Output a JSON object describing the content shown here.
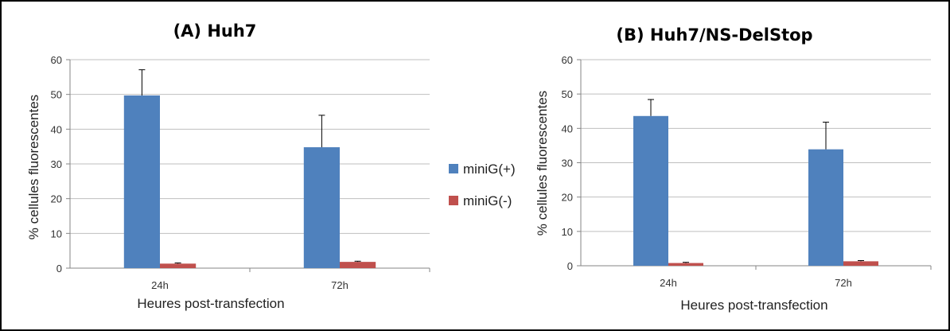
{
  "chart_data": [
    {
      "type": "bar",
      "title": "(A) Huh7",
      "xlabel": "Heures post-transfection",
      "ylabel": "% cellules fluorescentes",
      "categories": [
        "24h",
        "72h"
      ],
      "ylim": [
        0,
        60
      ],
      "yticks": [
        0,
        10,
        20,
        30,
        40,
        50,
        60
      ],
      "grid": true,
      "series": [
        {
          "name": "miniG(+)",
          "values": [
            49.7,
            34.8
          ],
          "errors": [
            7.4,
            9.2
          ]
        },
        {
          "name": "miniG(-)",
          "values": [
            1.3,
            1.8
          ],
          "errors": [
            0.2,
            0.2
          ]
        }
      ]
    },
    {
      "type": "bar",
      "title": "(B) Huh7/NS-DelStop",
      "xlabel": "Heures post-transfection",
      "ylabel": "% cellules fluorescentes",
      "categories": [
        "24h",
        "72h"
      ],
      "ylim": [
        0,
        60
      ],
      "yticks": [
        0,
        10,
        20,
        30,
        40,
        50,
        60
      ],
      "grid": true,
      "series": [
        {
          "name": "miniG(+)",
          "values": [
            43.6,
            33.9
          ],
          "errors": [
            4.8,
            7.9
          ]
        },
        {
          "name": "miniG(-)",
          "values": [
            0.8,
            1.3
          ],
          "errors": [
            0.2,
            0.2
          ]
        }
      ]
    }
  ],
  "legend": {
    "placement": "center",
    "items": [
      {
        "label": "miniG(+)",
        "color": "#4F81BD"
      },
      {
        "label": "miniG(-)",
        "color": "#C0504D"
      }
    ]
  },
  "colors": {
    "series1": "#4F81BD",
    "series2": "#C0504D",
    "grid": "#BFBFBF",
    "axis": "#868686",
    "error": "#000000"
  }
}
